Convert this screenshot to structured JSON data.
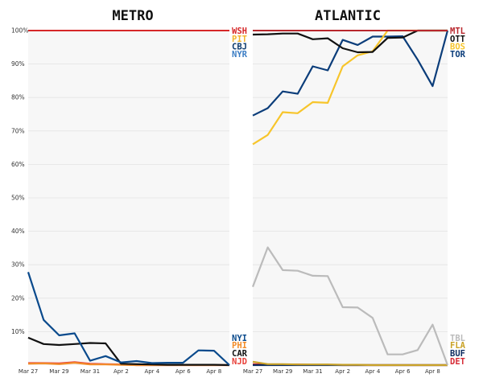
{
  "chart_data": [
    {
      "type": "line",
      "title": "METRO",
      "x": [
        "Mar 27",
        "Mar 28",
        "Mar 29",
        "Mar 30",
        "Mar 31",
        "Apr 1",
        "Apr 2",
        "Apr 3",
        "Apr 4",
        "Apr 5",
        "Apr 6",
        "Apr 7",
        "Apr 8",
        "Apr 9"
      ],
      "xtick_labels": [
        "Mar 27",
        "Mar 29",
        "Mar 31",
        "Apr 2",
        "Apr 4",
        "Apr 6",
        "Apr 8"
      ],
      "ytick_labels": [
        "10%",
        "20%",
        "30%",
        "40%",
        "50%",
        "60%",
        "70%",
        "80%",
        "90%",
        "100%"
      ],
      "ylim": [
        0,
        100
      ],
      "top_labels": [
        "WSH",
        "PIT",
        "CBJ",
        "NYR"
      ],
      "bottom_labels": [
        "NYI",
        "PHI",
        "CAR",
        "NJD"
      ],
      "series": [
        {
          "name": "WSH",
          "color": "#d62728",
          "values": [
            100,
            100,
            100,
            100,
            100,
            100,
            100,
            100,
            100,
            100,
            100,
            100,
            100,
            100
          ]
        },
        {
          "name": "PIT",
          "color": "#f2b52b",
          "values": [
            100,
            100,
            100,
            100,
            100,
            100,
            100,
            100,
            100,
            100,
            100,
            100,
            100,
            100
          ]
        },
        {
          "name": "CBJ",
          "color": "#0b3a6e",
          "values": [
            100,
            100,
            100,
            100,
            100,
            100,
            100,
            100,
            100,
            100,
            100,
            100,
            100,
            100
          ]
        },
        {
          "name": "NYR",
          "color": "#3b7dc4",
          "values": [
            100,
            100,
            100,
            100,
            100,
            100,
            100,
            100,
            100,
            100,
            100,
            100,
            100,
            100
          ]
        },
        {
          "name": "NYI",
          "color": "#0a4a8c",
          "values": [
            27.8,
            13.5,
            8.9,
            9.5,
            1.3,
            2.7,
            0.8,
            1.2,
            0.6,
            0.7,
            0.7,
            4.4,
            4.3,
            0
          ]
        },
        {
          "name": "CAR",
          "color": "#111111",
          "values": [
            8.2,
            6.3,
            6.0,
            6.3,
            6.6,
            6.5,
            0.4,
            0.3,
            0.2,
            0.1,
            0.1,
            0.1,
            0.1,
            0
          ]
        },
        {
          "name": "PHI",
          "color": "#f28c28",
          "values": [
            0.4,
            0.5,
            0.3,
            0.7,
            0.2,
            0.2,
            0.1,
            0,
            0,
            0,
            0,
            0,
            0,
            0
          ]
        },
        {
          "name": "NJD",
          "color": "#e8413a",
          "values": [
            0.6,
            0.6,
            0.5,
            0.9,
            0.4,
            0.3,
            0.2,
            0,
            0,
            0,
            0,
            0,
            0,
            0
          ]
        }
      ]
    },
    {
      "type": "line",
      "title": "ATLANTIC",
      "x": [
        "Mar 27",
        "Mar 28",
        "Mar 29",
        "Mar 30",
        "Mar 31",
        "Apr 1",
        "Apr 2",
        "Apr 3",
        "Apr 4",
        "Apr 5",
        "Apr 6",
        "Apr 7",
        "Apr 8",
        "Apr 9"
      ],
      "xtick_labels": [
        "Mar 27",
        "Mar 29",
        "Mar 31",
        "Apr 2",
        "Apr 4",
        "Apr 6",
        "Apr 8"
      ],
      "ylim": [
        0,
        100
      ],
      "top_labels": [
        "MTL",
        "OTT",
        "BOS",
        "TOR"
      ],
      "bottom_labels": [
        "TBL",
        "FLA",
        "BUF",
        "DET"
      ],
      "series": [
        {
          "name": "MTL",
          "color": "#b8272d",
          "values": [
            100,
            100,
            100,
            100,
            100,
            100,
            100,
            100,
            100,
            100,
            100,
            100,
            100,
            100
          ]
        },
        {
          "name": "OTT",
          "color": "#111111",
          "values": [
            98.8,
            98.9,
            99.1,
            99.1,
            97.4,
            97.7,
            94.7,
            93.5,
            93.6,
            97.8,
            97.9,
            100,
            100,
            100
          ]
        },
        {
          "name": "BOS",
          "color": "#f7c52b",
          "values": [
            66,
            68.8,
            75.6,
            75.3,
            78.6,
            78.4,
            89.3,
            92.6,
            93.8,
            100,
            100,
            100,
            100,
            100
          ]
        },
        {
          "name": "TOR",
          "color": "#0b3d7a",
          "values": [
            74.6,
            76.8,
            81.8,
            81.1,
            89.3,
            88.1,
            97.2,
            95.7,
            98.2,
            98.2,
            98.3,
            91.3,
            83.4,
            100
          ]
        },
        {
          "name": "TBL",
          "color": "#bbbbbb",
          "values": [
            23.4,
            35.2,
            28.4,
            28.2,
            26.7,
            26.6,
            17.3,
            17.2,
            14.1,
            3.2,
            3.2,
            4.5,
            12.1,
            0
          ]
        },
        {
          "name": "FLA",
          "color": "#c9a227",
          "values": [
            1.0,
            0.3,
            0.3,
            0.2,
            0.2,
            0.2,
            0.1,
            0.1,
            0,
            0,
            0,
            0,
            0,
            0
          ]
        },
        {
          "name": "BUF",
          "color": "#0b2a5e",
          "values": [
            0,
            0,
            0,
            0,
            0,
            0,
            0,
            0,
            0,
            0,
            0,
            0,
            0,
            0
          ]
        },
        {
          "name": "DET",
          "color": "#d62a35",
          "values": [
            0.3,
            0.2,
            0.2,
            0.2,
            0.1,
            0.1,
            0,
            0,
            0,
            0,
            0,
            0,
            0,
            0
          ]
        }
      ]
    }
  ]
}
